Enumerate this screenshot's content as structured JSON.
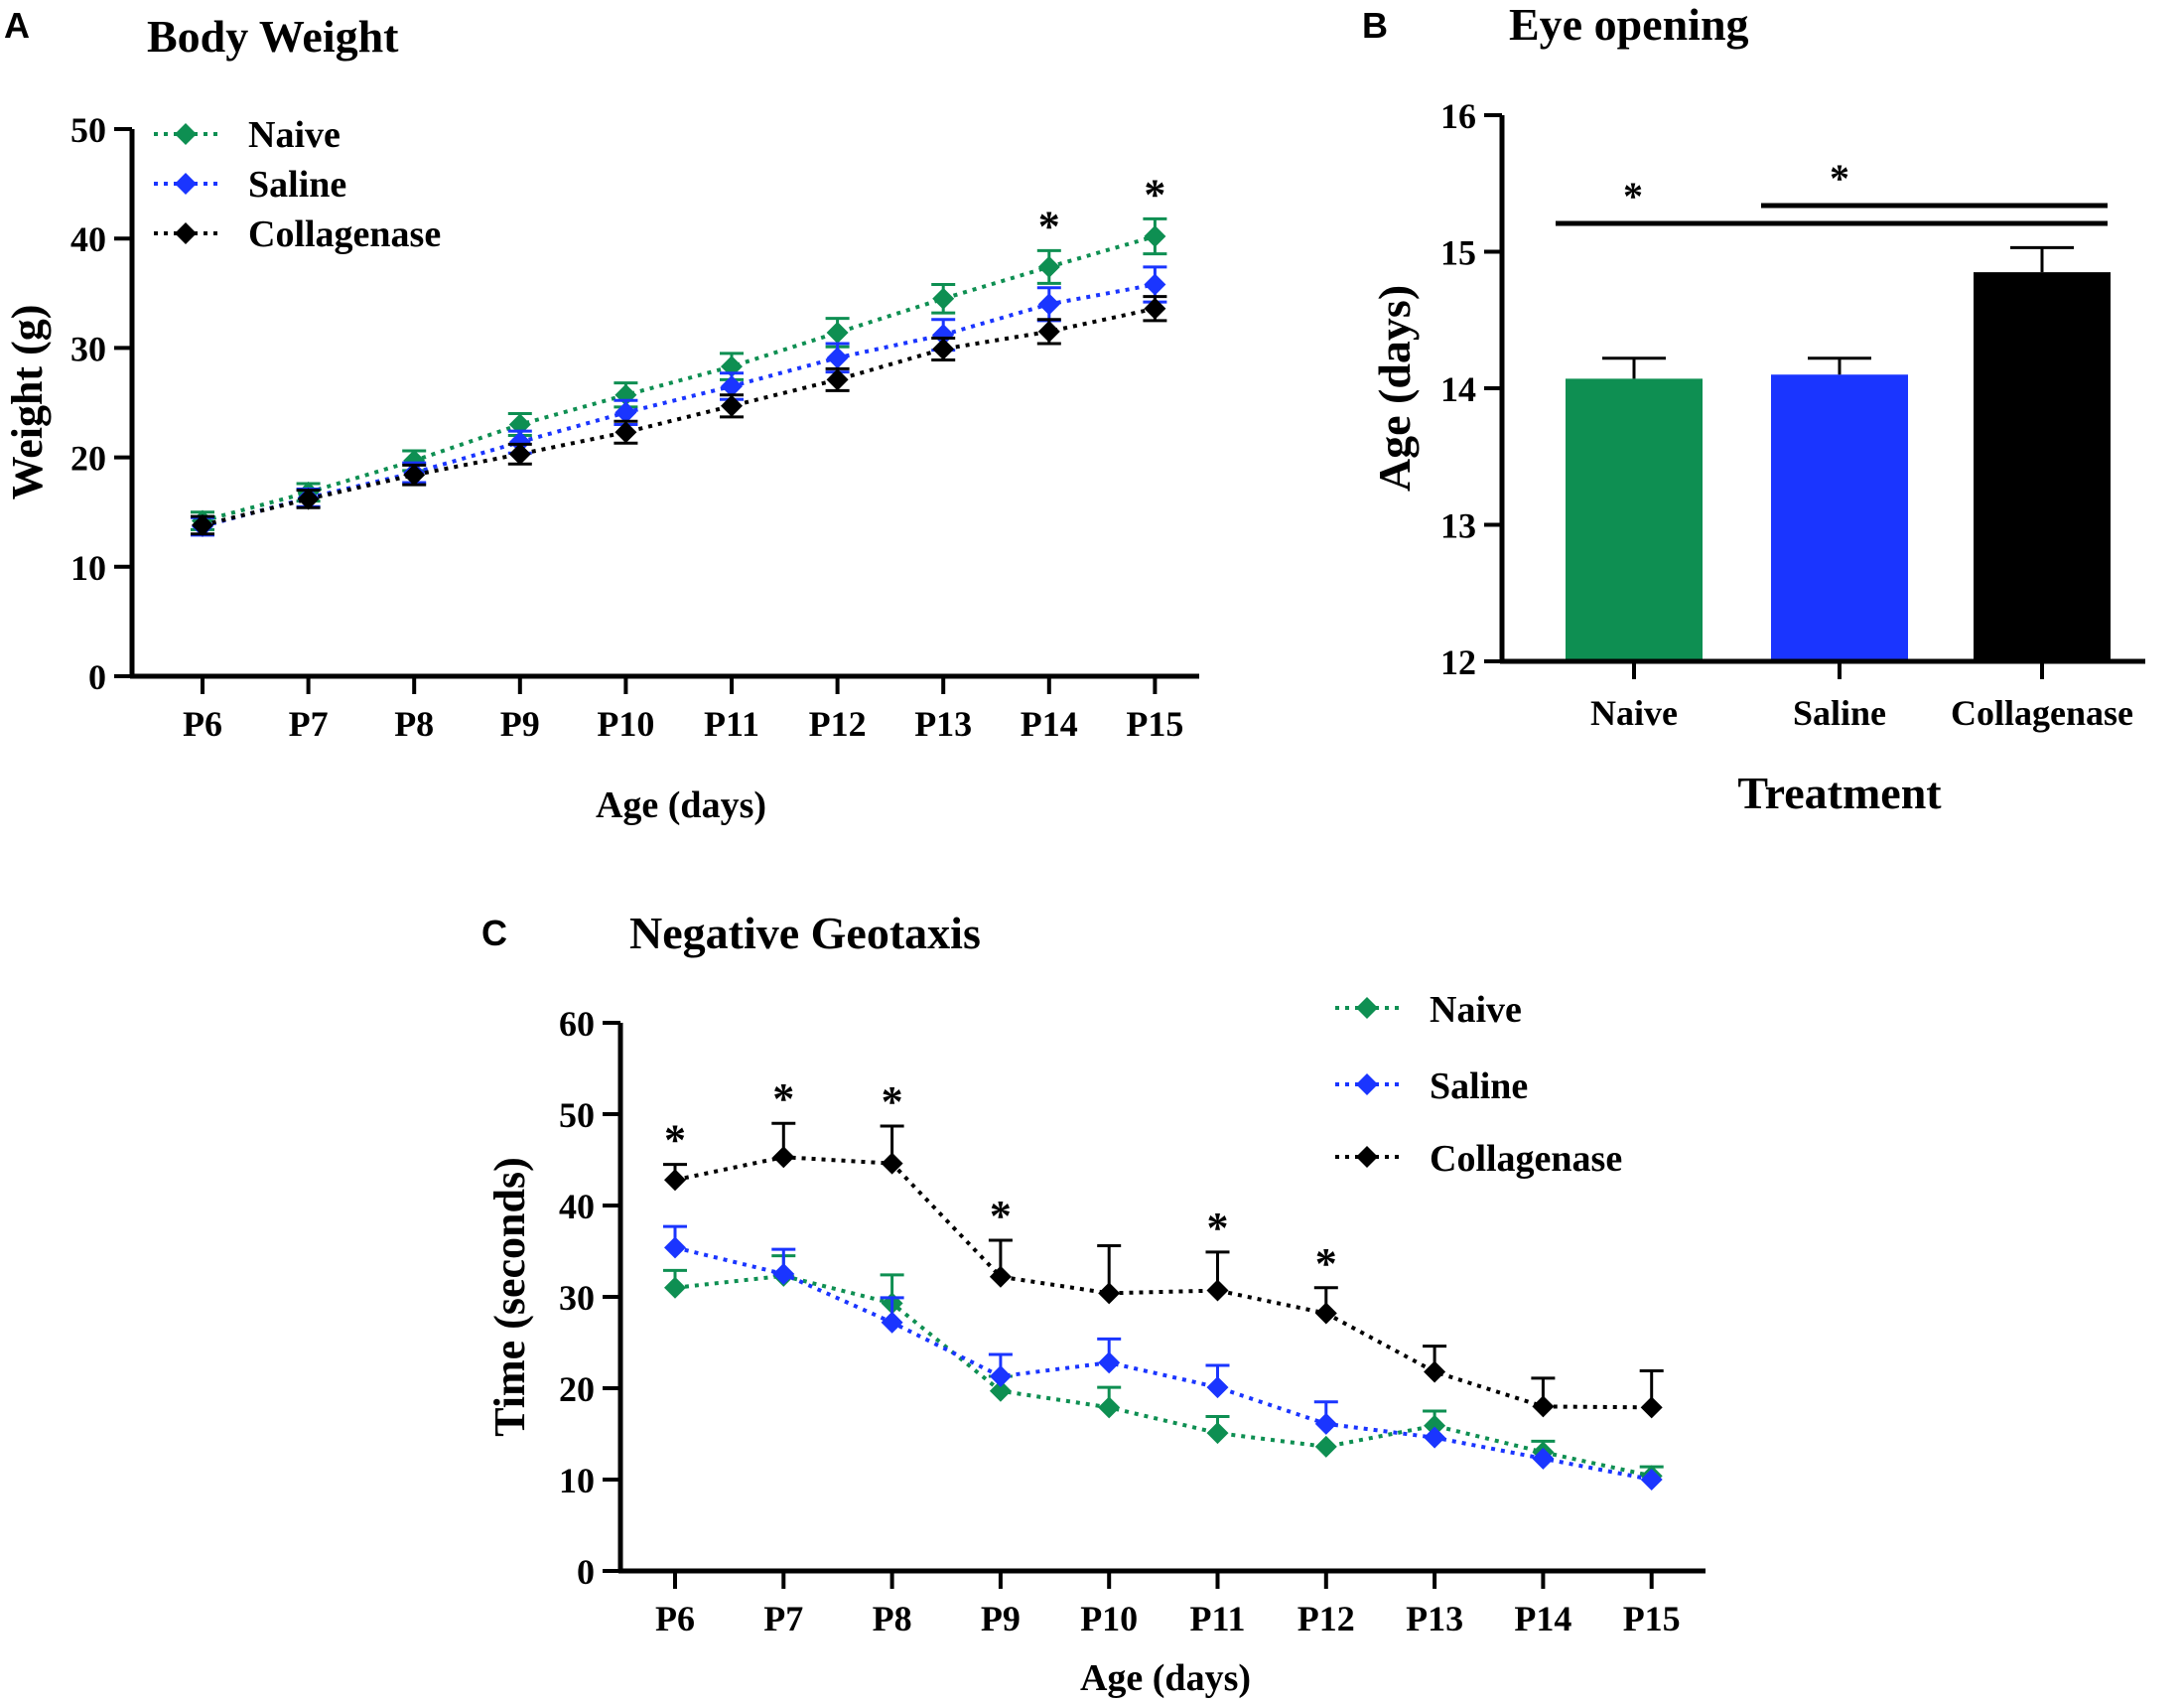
{
  "colors": {
    "naive": "#0e8f52",
    "saline": "#1a35ff",
    "collagenase": "#000000",
    "axis": "#000000"
  },
  "chart_data": [
    {
      "panel_label": "A",
      "type": "line",
      "title": "Body Weight",
      "xlabel": "Age (days)",
      "ylabel": "Weight (g)",
      "categories": [
        "P6",
        "P7",
        "P8",
        "P9",
        "P10",
        "P11",
        "P12",
        "P13",
        "P14",
        "P15"
      ],
      "ylim": [
        0,
        50
      ],
      "yticks": [
        "0",
        "10",
        "20",
        "30",
        "40",
        "50"
      ],
      "legend": [
        "Naive",
        "Saline",
        "Collagenase"
      ],
      "series": [
        {
          "name": "Naive",
          "values": [
            14.2,
            16.8,
            19.7,
            23.0,
            25.7,
            28.3,
            31.4,
            34.5,
            37.4,
            40.2
          ],
          "errors": [
            0.8,
            0.8,
            0.9,
            1.0,
            1.1,
            1.2,
            1.3,
            1.3,
            1.5,
            1.6
          ]
        },
        {
          "name": "Saline",
          "values": [
            13.7,
            16.3,
            18.6,
            21.4,
            24.1,
            26.5,
            29.1,
            31.2,
            34.0,
            35.8
          ],
          "errors": [
            0.8,
            0.8,
            0.9,
            1.0,
            1.1,
            1.2,
            1.3,
            1.4,
            1.5,
            1.6
          ]
        },
        {
          "name": "Collagenase",
          "values": [
            13.8,
            16.2,
            18.4,
            20.3,
            22.3,
            24.7,
            27.1,
            29.9,
            31.5,
            33.6
          ],
          "errors": [
            0.8,
            0.8,
            0.9,
            0.9,
            1.0,
            1.0,
            1.0,
            1.0,
            1.1,
            1.1
          ]
        }
      ],
      "annotations": [
        {
          "category": "P14",
          "text": "*"
        },
        {
          "category": "P15",
          "text": "*"
        }
      ]
    },
    {
      "panel_label": "B",
      "type": "bar",
      "title": "Eye opening",
      "xlabel": "Treatment",
      "ylabel": "Age (days)",
      "categories": [
        "Naive",
        "Saline",
        "Collagenase"
      ],
      "values": [
        14.07,
        14.1,
        14.85
      ],
      "errors": [
        0.15,
        0.12,
        0.18
      ],
      "ylim": [
        12,
        16
      ],
      "yticks": [
        "12",
        "13",
        "14",
        "15",
        "16"
      ],
      "significance": [
        {
          "from": "Naive",
          "to": "Collagenase",
          "text": "*"
        },
        {
          "from": "Saline",
          "to": "Collagenase",
          "text": "*"
        }
      ]
    },
    {
      "panel_label": "C",
      "type": "line",
      "title": "Negative Geotaxis",
      "xlabel": "Age (days)",
      "ylabel": "Time (seconds)",
      "categories": [
        "P6",
        "P7",
        "P8",
        "P9",
        "P10",
        "P11",
        "P12",
        "P13",
        "P14",
        "P15"
      ],
      "ylim": [
        0,
        60
      ],
      "yticks": [
        "0",
        "10",
        "20",
        "30",
        "40",
        "50",
        "60"
      ],
      "legend": [
        "Naive",
        "Saline",
        "Collagenase"
      ],
      "series": [
        {
          "name": "Naive",
          "values": [
            31.0,
            32.3,
            29.3,
            19.7,
            17.9,
            15.1,
            13.6,
            15.9,
            13.0,
            10.4
          ],
          "errors": [
            1.9,
            2.2,
            3.1,
            1.6,
            2.2,
            1.8,
            0.0,
            1.6,
            1.2,
            1.0
          ]
        },
        {
          "name": "Saline",
          "values": [
            35.4,
            32.5,
            27.2,
            21.3,
            22.8,
            20.1,
            16.1,
            14.6,
            12.3,
            10.0
          ],
          "errors": [
            2.3,
            2.7,
            2.7,
            2.4,
            2.6,
            2.4,
            2.4,
            0.0,
            0.0,
            0.0
          ]
        },
        {
          "name": "Collagenase",
          "values": [
            42.8,
            45.3,
            44.6,
            32.2,
            30.4,
            30.7,
            28.2,
            21.8,
            18.0,
            17.9
          ],
          "errors": [
            1.7,
            3.7,
            4.1,
            4.0,
            5.2,
            4.2,
            2.8,
            2.8,
            3.1,
            4.0
          ]
        }
      ],
      "annotations": [
        {
          "category": "P6",
          "text": "*"
        },
        {
          "category": "P7",
          "text": "*"
        },
        {
          "category": "P8",
          "text": "*"
        },
        {
          "category": "P9",
          "text": "*"
        },
        {
          "category": "P11",
          "text": "*"
        },
        {
          "category": "P12",
          "text": "*"
        }
      ]
    }
  ]
}
